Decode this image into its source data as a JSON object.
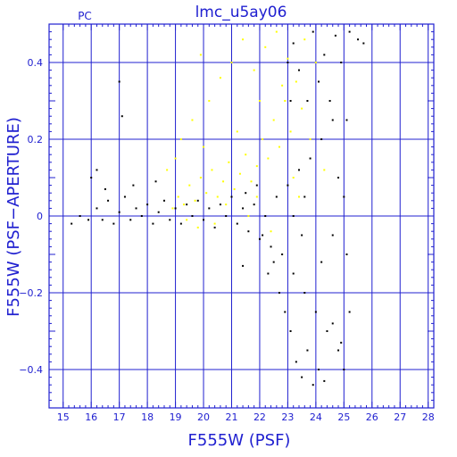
{
  "chart_data": {
    "type": "scatter",
    "title": "lmc_u5ay06",
    "corner_label": "PC",
    "xlabel": "F555W (PSF)",
    "ylabel": "F555W (PSF−APERTURE)",
    "xlim": [
      14.5,
      28.2
    ],
    "ylim": [
      -0.5,
      0.5
    ],
    "x_ticks": [
      15,
      16,
      17,
      18,
      19,
      20,
      21,
      22,
      23,
      24,
      25,
      26,
      27,
      28
    ],
    "y_ticks": [
      -0.4,
      -0.2,
      0,
      0.2,
      0.4
    ],
    "y_tick_labels": [
      "−0.4",
      "−0.2",
      "0",
      "0.2",
      "0.4"
    ],
    "grid": true,
    "colors": {
      "axis": "#2020d0",
      "grid": "#2020d0",
      "series_black": "#000000",
      "series_yellow": "#ffff00"
    },
    "series": [
      {
        "color": "#ffff00",
        "points": [
          [
            18.9,
            0.02
          ],
          [
            19.1,
            0.05
          ],
          [
            19.3,
            0.03
          ],
          [
            19.5,
            0.08
          ],
          [
            19.7,
            0.04
          ],
          [
            19.9,
            0.1
          ],
          [
            20.1,
            0.06
          ],
          [
            20.3,
            0.12
          ],
          [
            20.5,
            0.05
          ],
          [
            20.7,
            0.09
          ],
          [
            20.9,
            0.14
          ],
          [
            21.1,
            0.07
          ],
          [
            21.3,
            0.11
          ],
          [
            21.5,
            0.16
          ],
          [
            21.7,
            0.09
          ],
          [
            21.9,
            0.13
          ],
          [
            22.1,
            0.2
          ],
          [
            22.3,
            0.15
          ],
          [
            22.5,
            0.25
          ],
          [
            22.7,
            0.18
          ],
          [
            22.9,
            0.3
          ],
          [
            23.1,
            0.22
          ],
          [
            23.3,
            0.35
          ],
          [
            23.5,
            0.28
          ],
          [
            19.2,
            0.2
          ],
          [
            19.6,
            0.25
          ],
          [
            19.9,
            0.42
          ],
          [
            20.2,
            0.3
          ],
          [
            20.6,
            0.36
          ],
          [
            21.0,
            0.4
          ],
          [
            21.4,
            0.46
          ],
          [
            21.8,
            0.38
          ],
          [
            22.2,
            0.44
          ],
          [
            22.6,
            0.48
          ],
          [
            23.0,
            0.41
          ],
          [
            23.6,
            0.46
          ],
          [
            24.0,
            0.4
          ],
          [
            18.7,
            0.12
          ],
          [
            19.0,
            0.15
          ],
          [
            20.0,
            0.18
          ],
          [
            21.2,
            0.22
          ],
          [
            22.0,
            0.3
          ],
          [
            22.8,
            0.34
          ],
          [
            23.2,
            0.1
          ],
          [
            23.8,
            0.2
          ],
          [
            24.3,
            0.12
          ],
          [
            19.4,
            -0.01
          ],
          [
            20.4,
            -0.02
          ],
          [
            21.6,
            0.0
          ],
          [
            22.4,
            -0.04
          ],
          [
            20.8,
            0.03
          ],
          [
            21.9,
            0.05
          ],
          [
            23.4,
            0.05
          ],
          [
            19.8,
            -0.03
          ]
        ]
      },
      {
        "color": "#000000",
        "points": [
          [
            15.3,
            -0.02
          ],
          [
            15.6,
            0.0
          ],
          [
            15.9,
            -0.01
          ],
          [
            16.0,
            0.1
          ],
          [
            16.2,
            0.02
          ],
          [
            16.4,
            -0.01
          ],
          [
            16.6,
            0.04
          ],
          [
            16.8,
            -0.02
          ],
          [
            17.0,
            0.01
          ],
          [
            17.2,
            0.05
          ],
          [
            17.4,
            -0.01
          ],
          [
            17.6,
            0.02
          ],
          [
            17.8,
            0.0
          ],
          [
            18.0,
            0.03
          ],
          [
            18.2,
            -0.02
          ],
          [
            18.4,
            0.01
          ],
          [
            18.6,
            0.04
          ],
          [
            18.8,
            -0.01
          ],
          [
            19.0,
            0.02
          ],
          [
            19.2,
            -0.02
          ],
          [
            19.4,
            0.03
          ],
          [
            19.6,
            0.0
          ],
          [
            19.8,
            0.04
          ],
          [
            20.0,
            -0.01
          ],
          [
            20.2,
            0.02
          ],
          [
            20.4,
            -0.03
          ],
          [
            20.6,
            0.03
          ],
          [
            20.8,
            0.0
          ],
          [
            21.0,
            0.05
          ],
          [
            21.2,
            -0.02
          ],
          [
            21.4,
            0.02
          ],
          [
            21.6,
            -0.04
          ],
          [
            21.8,
            0.03
          ],
          [
            22.0,
            -0.06
          ],
          [
            22.2,
            0.0
          ],
          [
            22.4,
            -0.08
          ],
          [
            22.6,
            0.05
          ],
          [
            22.8,
            -0.1
          ],
          [
            23.0,
            0.08
          ],
          [
            23.2,
            -0.15
          ],
          [
            23.4,
            0.12
          ],
          [
            23.6,
            -0.2
          ],
          [
            23.8,
            0.15
          ],
          [
            24.0,
            -0.25
          ],
          [
            24.2,
            0.2
          ],
          [
            24.4,
            -0.3
          ],
          [
            24.6,
            0.25
          ],
          [
            24.8,
            -0.35
          ],
          [
            17.0,
            0.35
          ],
          [
            17.1,
            0.26
          ],
          [
            16.2,
            0.12
          ],
          [
            16.5,
            0.07
          ],
          [
            17.5,
            0.08
          ],
          [
            18.3,
            0.09
          ],
          [
            23.0,
            0.4
          ],
          [
            23.1,
            0.3
          ],
          [
            23.2,
            0.45
          ],
          [
            23.4,
            0.38
          ],
          [
            23.5,
            -0.05
          ],
          [
            23.7,
            0.3
          ],
          [
            23.9,
            0.48
          ],
          [
            24.1,
            0.35
          ],
          [
            24.3,
            0.42
          ],
          [
            24.5,
            0.3
          ],
          [
            24.7,
            0.47
          ],
          [
            24.9,
            0.4
          ],
          [
            25.2,
            0.48
          ],
          [
            25.5,
            0.46
          ],
          [
            25.7,
            0.45
          ],
          [
            23.1,
            -0.3
          ],
          [
            23.3,
            -0.38
          ],
          [
            23.5,
            -0.42
          ],
          [
            23.7,
            -0.35
          ],
          [
            23.9,
            -0.44
          ],
          [
            24.1,
            -0.4
          ],
          [
            24.3,
            -0.43
          ],
          [
            24.6,
            -0.28
          ],
          [
            24.9,
            -0.33
          ],
          [
            25.0,
            -0.4
          ],
          [
            25.2,
            -0.25
          ],
          [
            25.1,
            -0.1
          ],
          [
            25.0,
            0.05
          ],
          [
            25.1,
            0.25
          ],
          [
            21.4,
            -0.13
          ],
          [
            22.3,
            -0.15
          ],
          [
            22.7,
            -0.2
          ],
          [
            22.9,
            -0.25
          ],
          [
            23.2,
            0.0
          ],
          [
            23.6,
            0.05
          ],
          [
            24.2,
            -0.12
          ],
          [
            24.6,
            -0.05
          ],
          [
            24.8,
            0.1
          ],
          [
            22.5,
            -0.12
          ],
          [
            22.1,
            -0.05
          ],
          [
            21.9,
            0.08
          ],
          [
            21.5,
            0.06
          ]
        ]
      }
    ]
  }
}
